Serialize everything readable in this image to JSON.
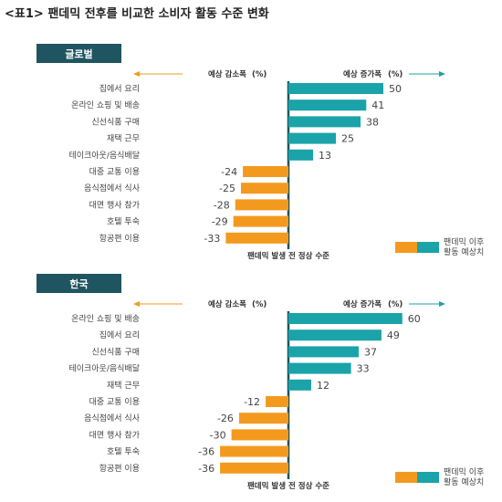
{
  "title": "<표1> 팬데믹 전후를 비교한 소비자 활동 수준 변화",
  "colors": {
    "increase": "#1aa3a9",
    "decrease": "#f39a1e",
    "header_bg": "#1f5560",
    "arrow_left": "#f39a1e",
    "arrow_right": "#1aa3a9",
    "axis": "#1f5560"
  },
  "chart_data": [
    {
      "type": "bar",
      "orientation": "horizontal",
      "panel_label": "글로벌",
      "decrease_header": "예상 감소폭",
      "decrease_unit": "(%)",
      "increase_header": "예상 증가폭",
      "increase_unit": "(%)",
      "baseline_label": "팬데믹 발생 전 정상 수준",
      "legend_label_line1": "팬데믹 이후",
      "legend_label_line2": "활동 예상치",
      "categories": [
        "집에서 요리",
        "온라인 쇼핑 및 배송",
        "신선식품 구매",
        "재택 근무",
        "테이크아웃/음식배달",
        "대중 교통 이용",
        "음식점에서 식사",
        "대면 행사 참가",
        "호텔 투숙",
        "항공편 이용"
      ],
      "values": [
        50,
        41,
        38,
        25,
        13,
        -24,
        -25,
        -28,
        -29,
        -33
      ]
    },
    {
      "type": "bar",
      "orientation": "horizontal",
      "panel_label": "한국",
      "decrease_header": "예상 감소폭",
      "decrease_unit": "(%)",
      "increase_header": "예상 증가폭",
      "increase_unit": "(%)",
      "baseline_label": "팬데믹 발생 전 정상 수준",
      "legend_label_line1": "팬데믹 이후",
      "legend_label_line2": "활동 예상치",
      "categories": [
        "온라인 쇼핑 및 배송",
        "집에서 요리",
        "신선식품 구매",
        "테이크아웃/음식배달",
        "재택 근무",
        "대중 교통 이용",
        "음식점에서 식사",
        "대면 행사 참가",
        "호텔 투숙",
        "항공편 이용"
      ],
      "values": [
        60,
        49,
        37,
        33,
        12,
        -12,
        -26,
        -30,
        -36,
        -36
      ]
    }
  ]
}
